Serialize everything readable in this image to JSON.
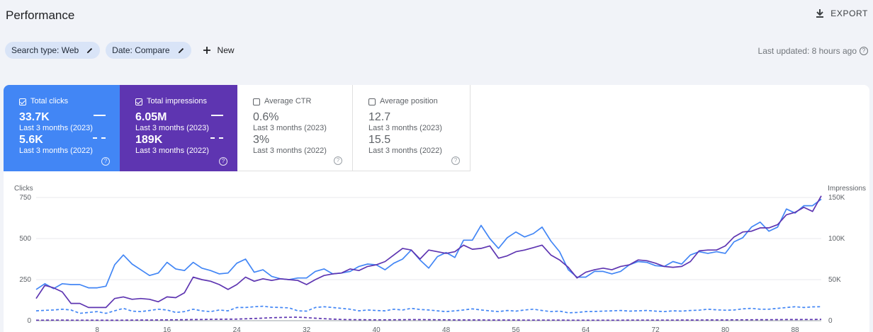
{
  "header": {
    "title": "Performance",
    "export_label": "EXPORT",
    "export_icon": "download-icon"
  },
  "filters": {
    "chips": [
      {
        "label": "Search type: Web",
        "icon": "edit-icon"
      },
      {
        "label": "Date: Compare",
        "icon": "edit-icon"
      }
    ],
    "new_label": "New",
    "new_icon": "plus-icon",
    "last_updated": "Last updated: 8 hours ago",
    "help_glyph": "?"
  },
  "metrics": [
    {
      "label": "Total clicks",
      "checked": true,
      "color": "#4286f5",
      "current_value": "33.7K",
      "current_period": "Last 3 months (2023)",
      "previous_value": "5.6K",
      "previous_period": "Last 3 months (2022)"
    },
    {
      "label": "Total impressions",
      "checked": true,
      "color": "#5e35b1",
      "current_value": "6.05M",
      "current_period": "Last 3 months (2023)",
      "previous_value": "189K",
      "previous_period": "Last 3 months (2022)"
    },
    {
      "label": "Average CTR",
      "checked": false,
      "current_value": "0.6%",
      "current_period": "Last 3 months (2023)",
      "previous_value": "3%",
      "previous_period": "Last 3 months (2022)"
    },
    {
      "label": "Average position",
      "checked": false,
      "current_value": "12.7",
      "current_period": "Last 3 months (2023)",
      "previous_value": "15.5",
      "previous_period": "Last 3 months (2022)"
    }
  ],
  "chart_data": {
    "type": "line",
    "y_left_label": "Clicks",
    "y_right_label": "Impressions",
    "y_left_ticks": [
      "0",
      "250",
      "500",
      "750"
    ],
    "y_right_ticks": [
      "0",
      "50K",
      "100K",
      "150K"
    ],
    "ylim_left": [
      0,
      750
    ],
    "ylim_right": [
      0,
      150000
    ],
    "x_ticks": [
      8,
      16,
      24,
      32,
      40,
      48,
      56,
      64,
      72,
      80,
      88
    ],
    "x_range": [
      1,
      91
    ],
    "grid": true,
    "series": [
      {
        "color": "#4286f5",
        "style": "solid",
        "axis": "left",
        "values": [
          190,
          225,
          195,
          225,
          220,
          220,
          200,
          200,
          210,
          340,
          400,
          345,
          310,
          275,
          290,
          355,
          315,
          305,
          355,
          320,
          305,
          285,
          290,
          350,
          375,
          295,
          310,
          270,
          255,
          250,
          260,
          260,
          300,
          315,
          285,
          290,
          300,
          330,
          345,
          340,
          310,
          350,
          375,
          430,
          370,
          320,
          390,
          415,
          385,
          490,
          490,
          580,
          500,
          440,
          505,
          540,
          510,
          530,
          570,
          485,
          420,
          310,
          265,
          265,
          300,
          300,
          285,
          300,
          340,
          360,
          355,
          335,
          330,
          360,
          345,
          400,
          420,
          410,
          420,
          410,
          480,
          505,
          570,
          600,
          545,
          570,
          680,
          655,
          700,
          700,
          740
        ]
      },
      {
        "color": "#5e35b1",
        "style": "solid",
        "axis": "right",
        "values": [
          27000,
          43000,
          40000,
          35000,
          21000,
          21000,
          16000,
          16000,
          16000,
          27000,
          29000,
          26000,
          27000,
          26000,
          23000,
          29000,
          28000,
          34000,
          53000,
          50000,
          48000,
          44000,
          38000,
          44000,
          53000,
          48000,
          51000,
          49000,
          51000,
          50000,
          49000,
          44000,
          50000,
          55000,
          57000,
          58000,
          63000,
          61000,
          66000,
          68000,
          72000,
          80000,
          88000,
          86000,
          75000,
          86000,
          84000,
          82000,
          84000,
          92000,
          87000,
          88000,
          91000,
          76000,
          79000,
          84000,
          86000,
          89000,
          92000,
          80000,
          74000,
          65000,
          52000,
          59000,
          62000,
          64000,
          62000,
          66000,
          68000,
          74000,
          73000,
          70000,
          66000,
          65000,
          66000,
          72000,
          85000,
          86000,
          86000,
          91000,
          102000,
          108000,
          109000,
          113000,
          113000,
          117000,
          129000,
          132000,
          138000,
          133000,
          152000
        ]
      },
      {
        "color": "#4286f5",
        "style": "dashed",
        "axis": "left",
        "values": [
          60,
          63,
          65,
          70,
          65,
          45,
          50,
          55,
          45,
          60,
          75,
          58,
          55,
          62,
          70,
          65,
          50,
          55,
          70,
          60,
          55,
          65,
          60,
          80,
          80,
          85,
          88,
          82,
          80,
          78,
          60,
          58,
          80,
          85,
          80,
          75,
          70,
          60,
          65,
          62,
          60,
          70,
          65,
          75,
          68,
          65,
          60,
          55,
          60,
          65,
          72,
          65,
          60,
          55,
          62,
          58,
          65,
          70,
          62,
          55,
          58,
          48,
          50,
          55,
          56,
          58,
          60,
          62,
          58,
          60,
          62,
          58,
          55,
          60,
          58,
          62,
          64,
          70,
          66,
          64,
          65,
          72,
          75,
          70,
          70,
          75,
          80,
          85,
          80,
          84,
          85
        ]
      },
      {
        "color": "#5e35b1",
        "style": "dashed",
        "axis": "right",
        "values": [
          600,
          600,
          700,
          700,
          600,
          600,
          600,
          600,
          500,
          500,
          600,
          700,
          800,
          800,
          900,
          1000,
          1100,
          1200,
          1400,
          1500,
          1600,
          1700,
          1800,
          1900,
          2300,
          2700,
          3100,
          3600,
          3900,
          4100,
          4200,
          3700,
          3000,
          2400,
          1900,
          1500,
          1300,
          1200,
          1100,
          1000,
          1000,
          1100,
          1200,
          1300,
          1300,
          1200,
          1100,
          1000,
          900,
          900,
          900,
          900,
          800,
          800,
          800,
          800,
          700,
          700,
          700,
          700,
          700,
          600,
          600,
          600,
          600,
          600,
          600,
          600,
          700,
          700,
          700,
          700,
          700,
          700,
          800,
          800,
          800,
          900,
          900,
          900,
          1000,
          1000,
          1100,
          1200,
          1200,
          1300,
          1400,
          1400,
          1500,
          1500,
          1600
        ]
      }
    ]
  }
}
